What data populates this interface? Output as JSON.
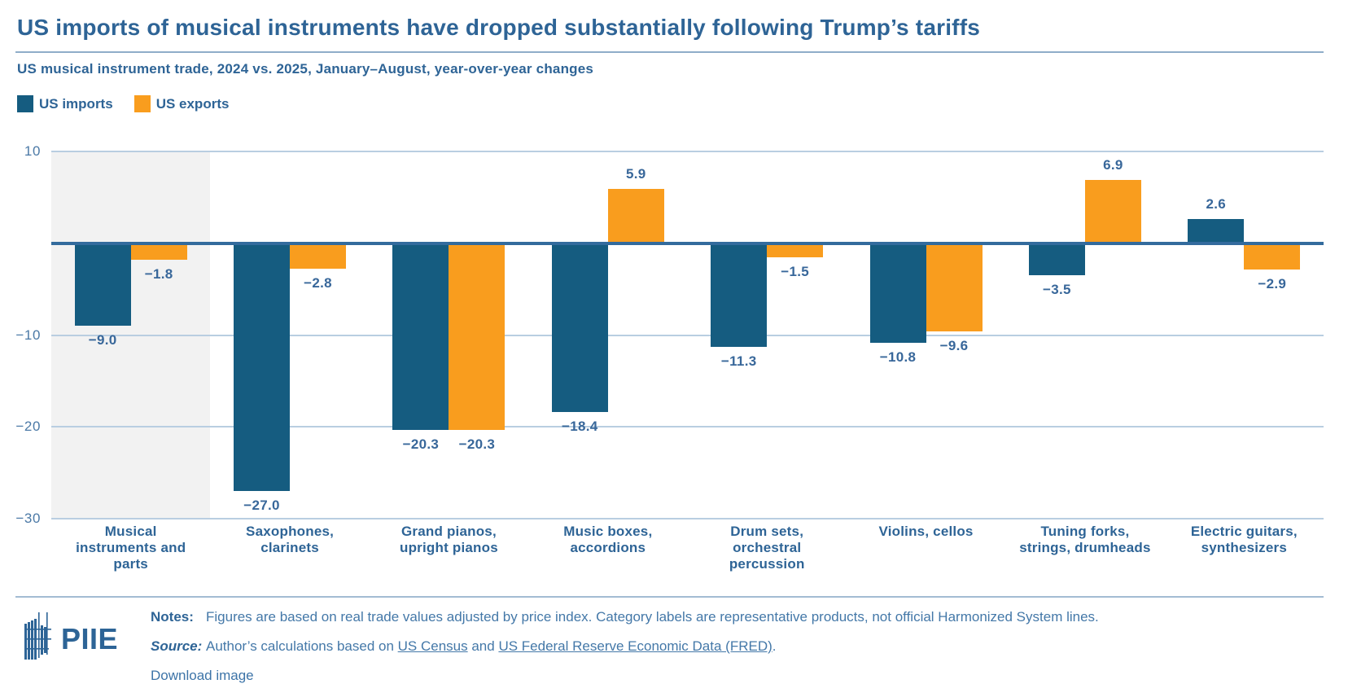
{
  "header": {
    "title": "US imports of musical instruments have dropped substantially following Trump’s tariffs",
    "subtitle": "US musical instrument trade, 2024 vs. 2025, January–August, year-over-year changes"
  },
  "chart_data": {
    "type": "bar",
    "title": "US imports of musical instruments have dropped substantially following Trump’s tariffs",
    "subtitle": "US musical instrument trade, 2024 vs. 2025, January–August, year-over-year changes",
    "categories": [
      [
        "Musical",
        "instruments and",
        "parts"
      ],
      [
        "Saxophones,",
        "clarinets"
      ],
      [
        "Grand pianos,",
        "upright pianos"
      ],
      [
        "Music boxes,",
        "accordions"
      ],
      [
        "Drum sets,",
        "orchestral",
        "percussion"
      ],
      [
        "Violins, cellos"
      ],
      [
        "Tuning forks,",
        "strings, drumheads"
      ],
      [
        "Electric guitars,",
        "synthesizers"
      ]
    ],
    "series": [
      {
        "name": "US imports",
        "color": "#155c80",
        "values": [
          -9.0,
          -27.0,
          -20.3,
          -18.4,
          -11.3,
          -10.8,
          -3.5,
          2.6
        ]
      },
      {
        "name": "US exports",
        "color": "#f99d1e",
        "values": [
          -1.8,
          -2.8,
          -20.3,
          5.9,
          -1.5,
          -9.6,
          6.9,
          -2.9
        ]
      }
    ],
    "xlabel": "",
    "ylabel": "",
    "ylim": [
      -30,
      10
    ],
    "yticks": [
      10,
      -10,
      -20,
      -30
    ],
    "grid": true,
    "gridline_color": "#b9cee1",
    "zero_line_color": "#336b9d",
    "tick_label_color": "#4b79a6",
    "value_label_color": "#38679a",
    "highlight_category_index": 0,
    "highlight_color": "#f2f2f2",
    "legend_position": "top-left"
  },
  "footer": {
    "logo_text": "PIIE",
    "notes_label": "Notes:",
    "notes_text": "Figures are based on real trade values adjusted by price index. Category labels are representative products, not official Harmonized System lines.",
    "source_label": "Source:",
    "source_prefix": "Author’s calculations based on ",
    "source_link_census": "US Census",
    "source_mid": " and ",
    "source_link_fred": "US Federal Reserve Economic Data (FRED)",
    "source_suffix": ".",
    "download_label": "Download image"
  }
}
